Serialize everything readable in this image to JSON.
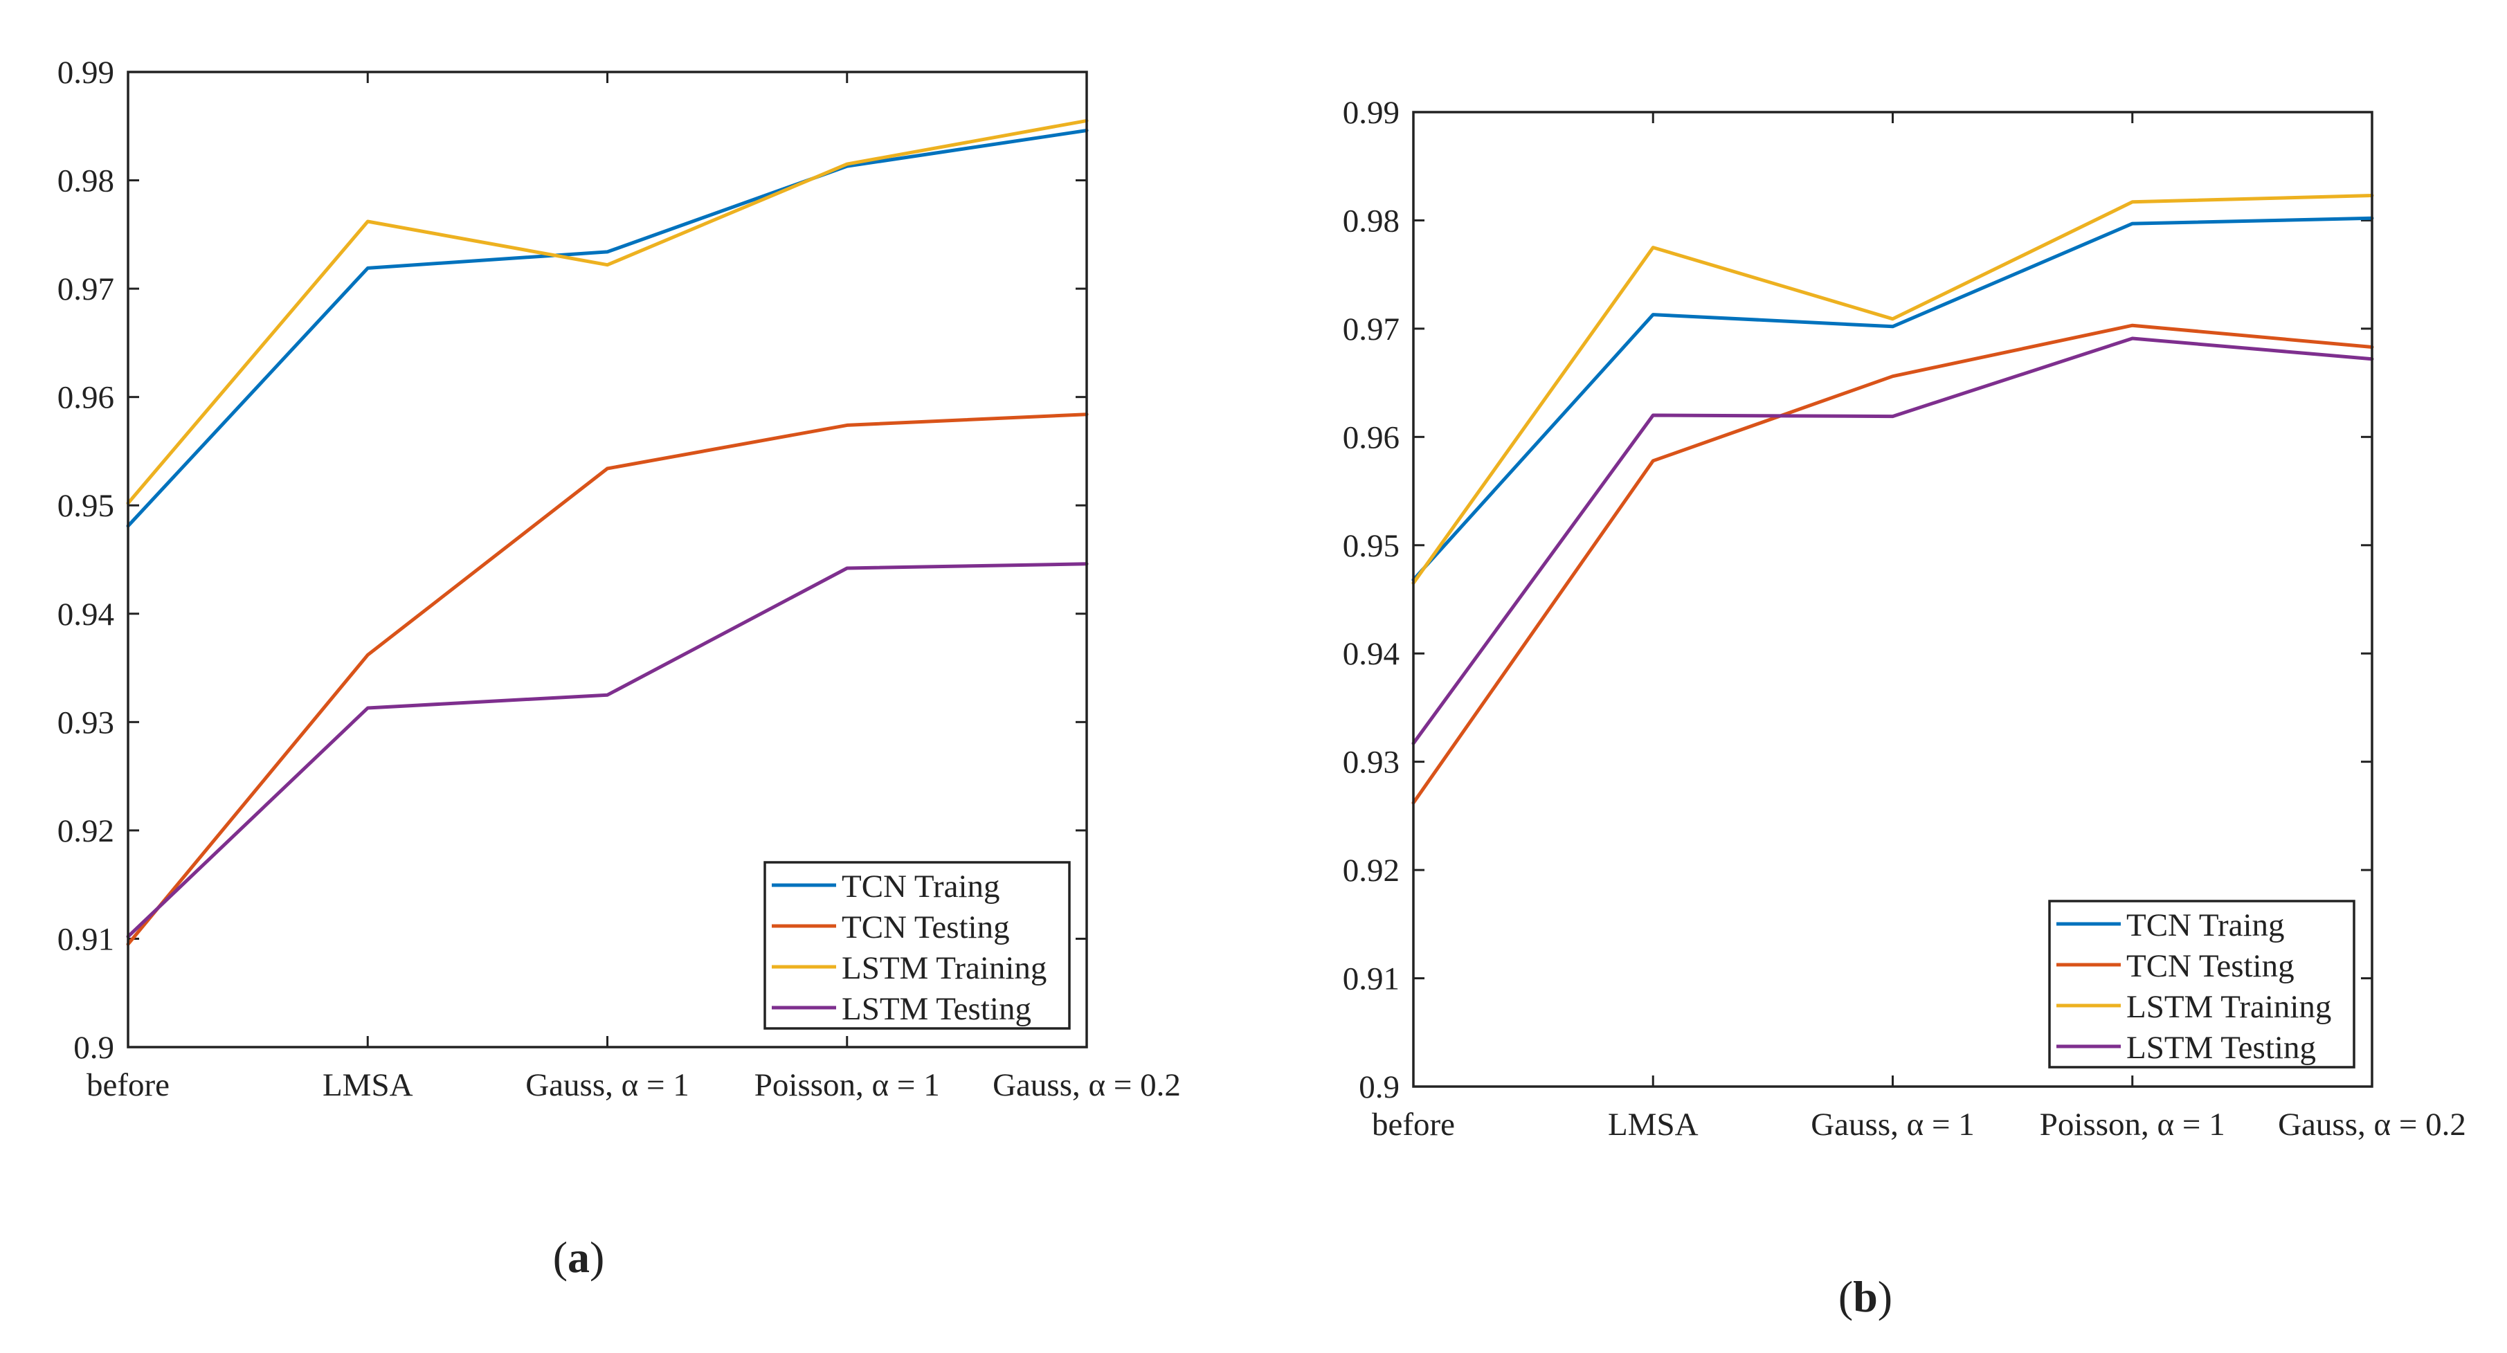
{
  "chart_data": [
    {
      "type": "line",
      "panel_label": {
        "open": "(",
        "letter": "a",
        "close": ")"
      },
      "categories": [
        "before",
        "LMSA",
        "Gauss, α = 1",
        "Poisson, α = 1",
        "Gauss, α = 0.2"
      ],
      "ylim": [
        0.9,
        0.99
      ],
      "yticks": [
        "0.9",
        "0.91",
        "0.92",
        "0.93",
        "0.94",
        "0.95",
        "0.96",
        "0.97",
        "0.98",
        "0.99"
      ],
      "grid": false,
      "legend_position": "bottom-right",
      "series": [
        {
          "name": "TCN Traing",
          "color": "#0072BD",
          "values": [
            0.9481,
            0.9719,
            0.9734,
            0.9813,
            0.9846
          ]
        },
        {
          "name": "TCN Testing",
          "color": "#D95319",
          "values": [
            0.9095,
            0.9362,
            0.9534,
            0.9574,
            0.9584
          ]
        },
        {
          "name": "LSTM Training",
          "color": "#EDB120",
          "values": [
            0.9502,
            0.9762,
            0.9722,
            0.9815,
            0.9855
          ]
        },
        {
          "name": "LSTM Testing",
          "color": "#7E2F8E",
          "values": [
            0.9102,
            0.9313,
            0.9325,
            0.9442,
            0.9446
          ]
        }
      ]
    },
    {
      "type": "line",
      "panel_label": {
        "open": "(",
        "letter": "b",
        "close": ")"
      },
      "categories": [
        "before",
        "LMSA",
        "Gauss, α = 1",
        "Poisson, α = 1",
        "Gauss, α = 0.2"
      ],
      "ylim": [
        0.9,
        0.99
      ],
      "yticks": [
        "0.9",
        "0.91",
        "0.92",
        "0.93",
        "0.94",
        "0.95",
        "0.96",
        "0.97",
        "0.98",
        "0.99"
      ],
      "grid": false,
      "legend_position": "bottom-right",
      "series": [
        {
          "name": "TCN Traing",
          "color": "#0072BD",
          "values": [
            0.9468,
            0.9713,
            0.9702,
            0.9797,
            0.9802
          ]
        },
        {
          "name": "TCN Testing",
          "color": "#D95319",
          "values": [
            0.9262,
            0.9578,
            0.9656,
            0.9703,
            0.9683
          ]
        },
        {
          "name": "LSTM Training",
          "color": "#EDB120",
          "values": [
            0.9465,
            0.9775,
            0.9709,
            0.9817,
            0.9823
          ]
        },
        {
          "name": "LSTM Testing",
          "color": "#7E2F8E",
          "values": [
            0.9317,
            0.962,
            0.9619,
            0.9691,
            0.9672
          ]
        }
      ]
    }
  ]
}
